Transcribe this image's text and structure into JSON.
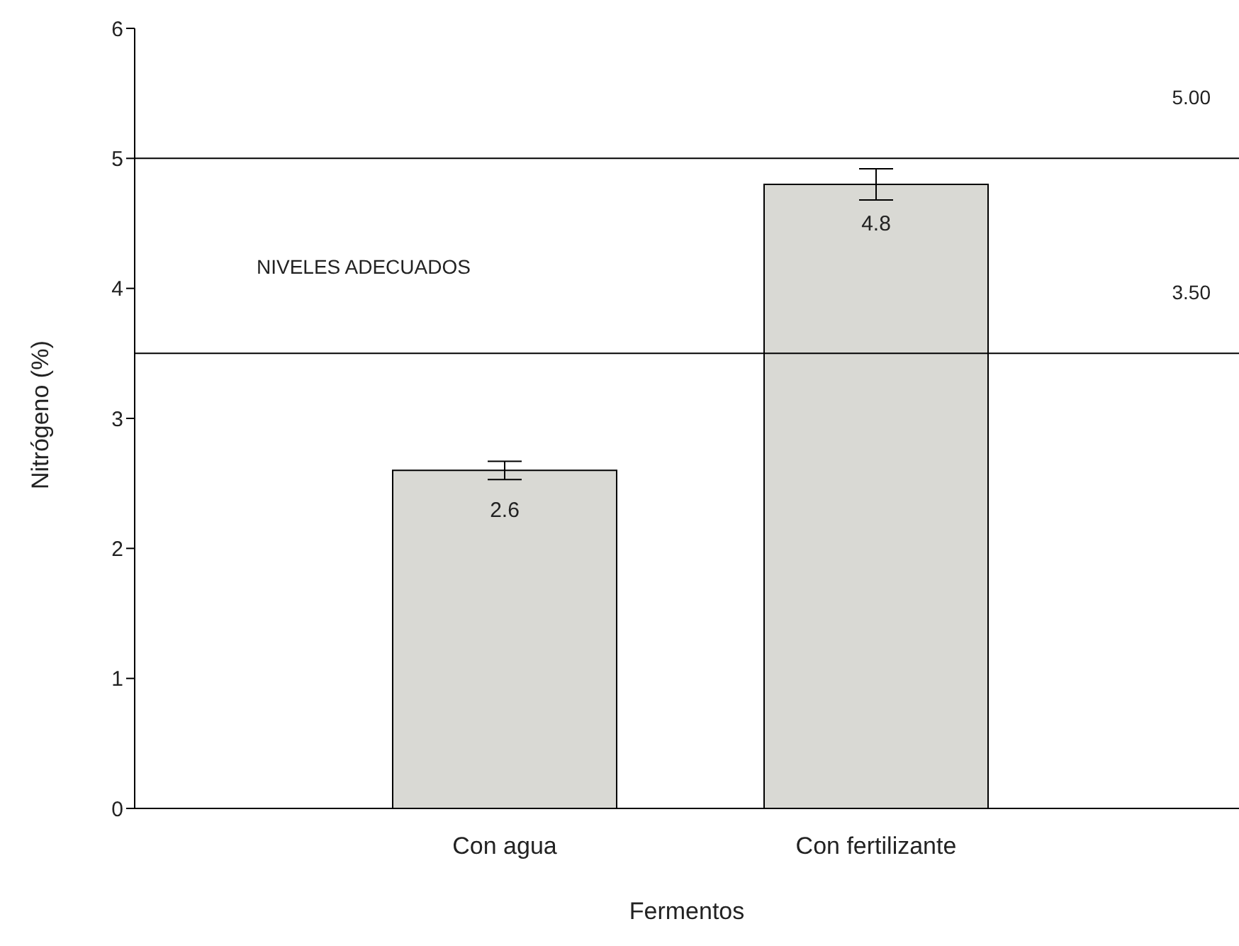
{
  "chart_data": {
    "type": "bar",
    "xlabel": "Fermentos",
    "ylabel": "Nitrógeno (%)",
    "categories": [
      "Con agua",
      "Con fertilizante"
    ],
    "values": [
      2.6,
      4.8
    ],
    "errors": [
      0.07,
      0.12
    ],
    "color": "#d9d9d4",
    "data_labels": true,
    "ylim": [
      0,
      6
    ],
    "yticks": [
      0,
      1,
      2,
      3,
      4,
      5,
      6
    ],
    "ref_lines": [
      {
        "axis": "y",
        "value": 5,
        "label": "5.00",
        "color": "#000000"
      },
      {
        "axis": "y",
        "value": 3.5,
        "label": "3.50",
        "color": "#000000"
      }
    ],
    "annotations": [
      "NIVELES ADECUADOS"
    ]
  }
}
